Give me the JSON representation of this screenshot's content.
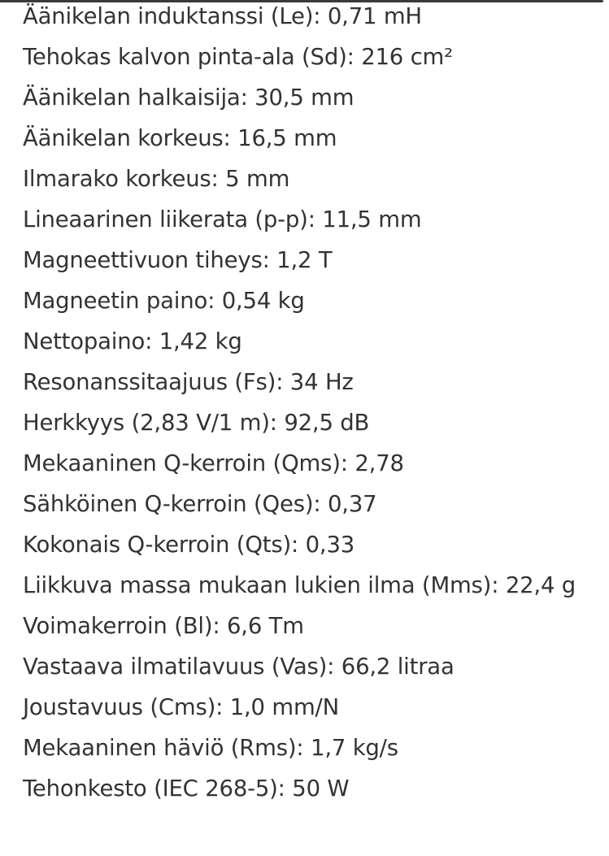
{
  "specs": [
    "Äänikelan induktanssi (Le): 0,71 mH",
    "Tehokas kalvon pinta-ala (Sd): 216 cm²",
    "Äänikelan halkaisija: 30,5 mm",
    "Äänikelan korkeus: 16,5 mm",
    "Ilmarako korkeus: 5 mm",
    "Lineaarinen liikerata (p-p): 11,5 mm",
    "Magneettivuon tiheys: 1,2 T",
    "Magneetin paino: 0,54 kg",
    "Nettopaino: 1,42 kg",
    "Resonanssitaajuus (Fs): 34 Hz",
    "Herkkyys (2,83 V/1 m): 92,5 dB",
    "Mekaaninen Q-kerroin (Qms): 2,78",
    "Sähköinen Q-kerroin (Qes): 0,37",
    "Kokonais Q-kerroin (Qts): 0,33",
    "Liikkuva massa mukaan lukien ilma (Mms): 22,4 g",
    "Voimakerroin (Bl): 6,6 Tm",
    "Vastaava ilmatilavuus (Vas): 66,2 litraa",
    "Joustavuus (Cms): 1,0 mm/N",
    "Mekaaninen häviö (Rms): 1,7 kg/s",
    "Tehonkesto (IEC 268-5): 50 W"
  ]
}
